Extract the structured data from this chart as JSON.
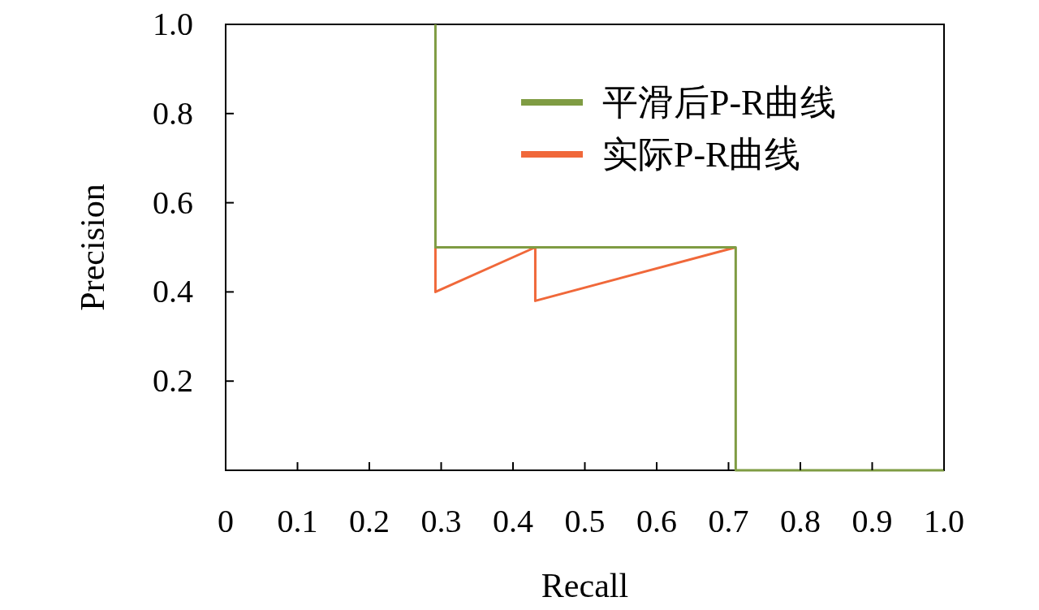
{
  "chart_data": {
    "type": "line",
    "xlabel": "Recall",
    "ylabel": "Precision",
    "xlim": [
      0,
      1
    ],
    "ylim": [
      0,
      1
    ],
    "xticks": [
      0,
      0.1,
      0.2,
      0.3,
      0.4,
      0.5,
      0.6,
      0.7,
      0.8,
      0.9,
      {
        "value": 1,
        "label": "1.0"
      }
    ],
    "yticks": [
      0.2,
      0.4,
      0.6,
      0.8,
      {
        "value": 1,
        "label": "1.0"
      }
    ],
    "legend": "top right",
    "marker": "none",
    "line_style": "solid",
    "grid": false,
    "series": [
      {
        "name": "平滑后P-R曲线",
        "color": "#7f9c43",
        "x": [
          0.292,
          0.292,
          0.71,
          0.71,
          1
        ],
        "values": [
          1,
          0.5,
          0.5,
          0,
          0
        ]
      },
      {
        "name": "实际P-R曲线",
        "color": "#f0683a",
        "x": [
          0.292,
          0.292,
          0.431,
          0.431,
          0.71
        ],
        "values": [
          0.5,
          0.4,
          0.5,
          0.38,
          0.5
        ]
      }
    ]
  }
}
